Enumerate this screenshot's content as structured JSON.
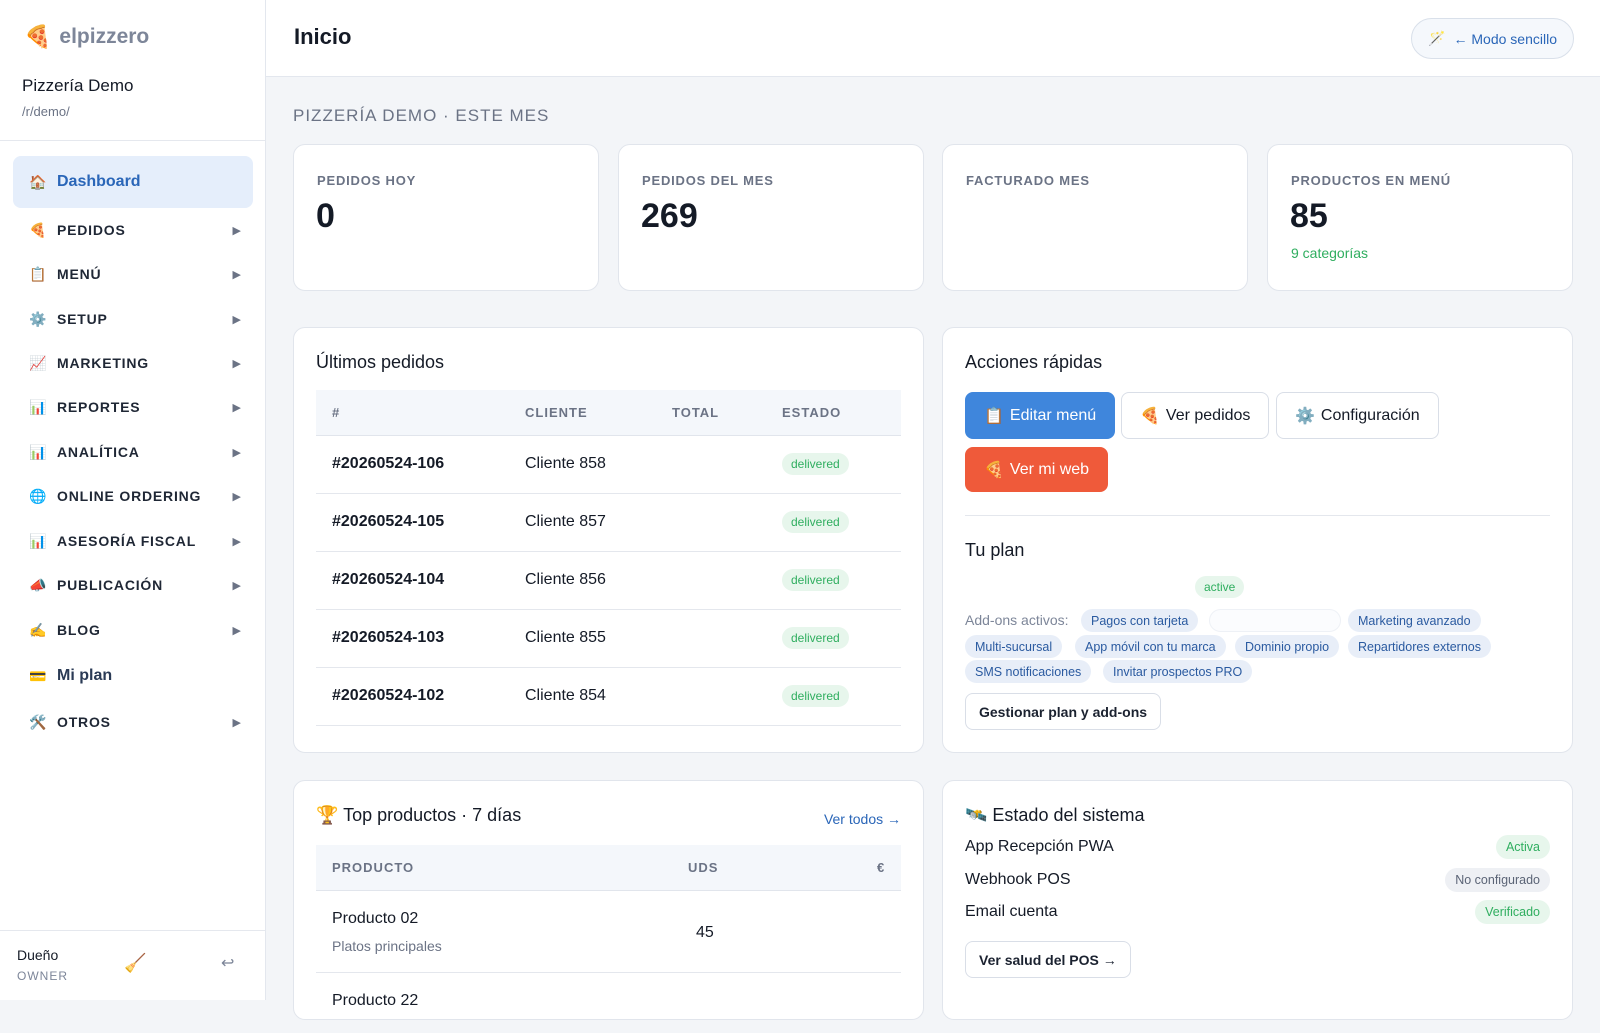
{
  "brand": {
    "name": "elpizzero",
    "logo_icon": "pizza-icon"
  },
  "restaurant": {
    "name": "Pizzería Demo",
    "slug": "/r/demo/"
  },
  "nav": [
    {
      "icon": "🏠",
      "label": "Dashboard",
      "active": true
    },
    {
      "icon": "🍕",
      "label": "PEDIDOS",
      "expandable": true
    },
    {
      "icon": "📋",
      "label": "MENÚ",
      "expandable": true
    },
    {
      "icon": "⚙️",
      "label": "SETUP",
      "expandable": true
    },
    {
      "icon": "📈",
      "label": "MARKETING",
      "expandable": true
    },
    {
      "icon": "📊",
      "label": "REPORTES",
      "expandable": true
    },
    {
      "icon": "📊",
      "label": "ANALÍTICA",
      "expandable": true
    },
    {
      "icon": "🌐",
      "label": "ONLINE ORDERING",
      "expandable": true
    },
    {
      "icon": "📊",
      "label": "ASESORÍA FISCAL",
      "expandable": true
    },
    {
      "icon": "📣",
      "label": "PUBLICACIÓN",
      "expandable": true
    },
    {
      "icon": "✍️",
      "label": "BLOG",
      "expandable": true
    },
    {
      "icon": "💳",
      "label": "Mi plan"
    },
    {
      "icon": "🛠️",
      "label": "OTROS",
      "expandable": true
    }
  ],
  "nav_arrow": "▶",
  "user": {
    "name": "Dueño",
    "role": "OWNER",
    "broom_icon": "🧹",
    "logout_icon": "↩"
  },
  "header": {
    "title": "Inicio",
    "mode_button": {
      "icon": "🪄",
      "label": "← Modo sencillo"
    }
  },
  "section_title": "PIZZERÍA DEMO · ESTE MES",
  "stats": [
    {
      "label": "PEDIDOS HOY",
      "value": "0",
      "sub": ""
    },
    {
      "label": "PEDIDOS DEL MES",
      "value": "269",
      "sub": ""
    },
    {
      "label": "FACTURADO MES",
      "value": "",
      "sub": ""
    },
    {
      "label": "PRODUCTOS EN MENÚ",
      "value": "85",
      "sub": "9 categorías"
    }
  ],
  "orders": {
    "title": "Últimos pedidos",
    "columns": [
      "#",
      "CLIENTE",
      "TOTAL",
      "ESTADO"
    ],
    "rows": [
      {
        "id": "#20260524-106",
        "client": "Cliente 858",
        "total": "",
        "status": "delivered"
      },
      {
        "id": "#20260524-105",
        "client": "Cliente 857",
        "total": "",
        "status": "delivered"
      },
      {
        "id": "#20260524-104",
        "client": "Cliente 856",
        "total": "",
        "status": "delivered"
      },
      {
        "id": "#20260524-103",
        "client": "Cliente 855",
        "total": "",
        "status": "delivered"
      },
      {
        "id": "#20260524-102",
        "client": "Cliente 854",
        "total": "",
        "status": "delivered"
      }
    ]
  },
  "quick_actions": {
    "title": "Acciones rápidas",
    "buttons": [
      {
        "icon": "📋",
        "label": "Editar menú"
      },
      {
        "icon": "🍕",
        "label": "Ver pedidos"
      },
      {
        "icon": "⚙️",
        "label": "Configuración"
      },
      {
        "icon": "🍕",
        "label": "Ver mi web"
      }
    ]
  },
  "plan": {
    "title": "Tu plan",
    "status": "active",
    "addons_label": "Add-ons activos:",
    "addons": [
      "Pagos con tarjeta",
      "",
      "Marketing avanzado",
      "Multi-sucursal",
      "App móvil con tu marca",
      "Dominio propio",
      "Repartidores externos",
      "SMS notificaciones",
      "Invitar prospectos PRO"
    ],
    "manage_button": "Gestionar plan y add-ons"
  },
  "top_products": {
    "title": "🏆 Top productos · 7 días",
    "view_all": "Ver todos →",
    "columns": [
      "PRODUCTO",
      "UDS",
      "€"
    ],
    "rows": [
      {
        "name": "Producto 02",
        "category": "Platos principales",
        "units": "45",
        "amount": ""
      },
      {
        "name": "Producto 22",
        "category": "",
        "units": "",
        "amount": ""
      }
    ]
  },
  "system": {
    "title": "🛰️ Estado del sistema",
    "rows": [
      {
        "label": "App Recepción PWA",
        "status": "Activa",
        "tone": "green"
      },
      {
        "label": "Webhook POS",
        "status": "No configurado",
        "tone": "gray"
      },
      {
        "label": "Email cuenta",
        "status": "Verificado",
        "tone": "green"
      }
    ],
    "health_button": "Ver salud del POS →"
  }
}
